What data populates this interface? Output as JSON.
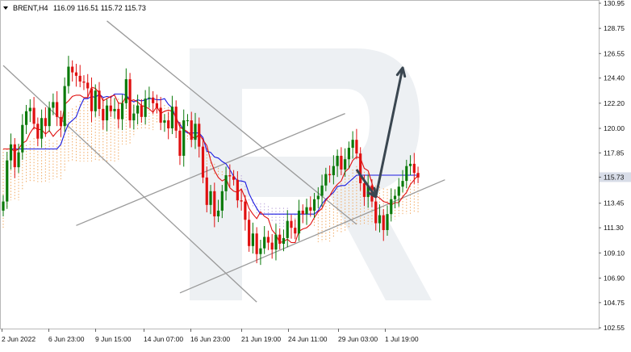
{
  "header": {
    "symbol_label": "BRENT,H4",
    "ohlc": "116.09 116.51 115.72 115.73"
  },
  "colors": {
    "bull": "#0a7a0a",
    "bear": "#e01010",
    "tenkan": "#e01010",
    "kijun": "#1a1ae0",
    "cloud": "#f0a050",
    "cloud_alt": "#b8a0d8",
    "trend": "#9a9a9a",
    "arrow": "#3a4650",
    "price_tag": "#d8dde8"
  },
  "chart_data": {
    "type": "candlestick",
    "title": "BRENT,H4",
    "ohlc_header": [
      116.09,
      116.51,
      115.72,
      115.73
    ],
    "ylim": [
      102.55,
      130.95
    ],
    "y_ticks": [
      "130.95",
      "128.75",
      "126.55",
      "124.40",
      "122.20",
      "120.00",
      "117.85",
      "115.73",
      "113.45",
      "111.30",
      "109.10",
      "106.90",
      "104.75",
      "102.55"
    ],
    "current_price": "115.73",
    "x_ticks": [
      "2 Jun 2022",
      "6 Jun 23:00",
      "9 Jun 15:00",
      "14 Jun 07:00",
      "16 Jun 23:00",
      "21 Jun 19:00",
      "24 Jun 11:00",
      "29 Jun 03:00",
      "1 Jul 19:00"
    ],
    "grid": true,
    "watermark": "R",
    "closes": [
      113.6,
      117.2,
      118.6,
      116.6,
      117.9,
      120.3,
      121.5,
      121.8,
      120.4,
      119.1,
      120.9,
      120.2,
      121.8,
      122.3,
      121.0,
      120.2,
      123.7,
      125.4,
      124.9,
      124.6,
      124.1,
      124.0,
      123.5,
      121.5,
      123.3,
      121.7,
      120.7,
      122.0,
      121.5,
      121.7,
      120.8,
      122.2,
      124.3,
      120.7,
      121.3,
      122.0,
      121.0,
      122.6,
      122.7,
      122.2,
      121.8,
      120.5,
      120.7,
      120.0,
      121.9,
      119.8,
      117.6,
      120.7,
      120.7,
      119.0,
      120.4,
      118.4,
      115.7,
      113.3,
      114.5,
      112.3,
      112.8,
      114.5,
      115.9,
      115.8,
      115.5,
      113.7,
      113.6,
      112.0,
      109.7,
      110.8,
      109.0,
      109.5,
      110.5,
      110.0,
      109.4,
      110.7,
      109.9,
      110.4,
      111.9,
      111.3,
      110.8,
      112.8,
      112.5,
      113.1,
      112.8,
      113.8,
      114.1,
      115.0,
      116.0,
      115.9,
      116.7,
      117.6,
      116.4,
      117.3,
      118.3,
      119.0,
      117.8,
      115.2,
      114.0,
      115.0,
      113.6,
      111.7,
      112.4,
      111.1,
      112.5,
      113.8,
      114.1,
      114.9,
      115.4,
      116.7,
      116.9,
      116.1,
      115.7
    ],
    "tenkan_sen": [
      118.2,
      118.2,
      118.2,
      118.0,
      118.2,
      118.7,
      118.9,
      119.6,
      120.1,
      119.9,
      119.9,
      119.5,
      119.8,
      119.3,
      119.7,
      120.0,
      122.1,
      122.4,
      122.8,
      122.9,
      122.9,
      122.7,
      122.7,
      123.6,
      123.5,
      123.1,
      122.4,
      122.6,
      122.8,
      122.9,
      122.2,
      122.2,
      122.8,
      122.4,
      122.5,
      122.3,
      122.0,
      121.9,
      121.7,
      121.4,
      121.9,
      121.3,
      121.5,
      121.6,
      121.5,
      121.0,
      120.1,
      119.9,
      119.7,
      119.3,
      119.1,
      119.5,
      119.0,
      118.5,
      117.2,
      116.3,
      115.7,
      115.4,
      115.6,
      114.8,
      114.5,
      114.4,
      114.7,
      113.9,
      113.0,
      112.5,
      112.1,
      112.7,
      112.3,
      112.1,
      111.1,
      110.7,
      110.0,
      110.1,
      110.3,
      110.0,
      110.0,
      111.0,
      111.2,
      111.3,
      111.6,
      112.2,
      112.7,
      113.0,
      113.7,
      114.1,
      114.7,
      115.1,
      115.4,
      116.2,
      116.5,
      117.2,
      117.5,
      117.4,
      116.5,
      116.3,
      115.2,
      114.1,
      113.9,
      113.6,
      113.5,
      113.3,
      113.5,
      113.5,
      114.0,
      114.4,
      115.1,
      115.5,
      115.9
    ],
    "kijun_sen": [
      118.2,
      118.2,
      118.2,
      118.2,
      118.2,
      118.2,
      118.2,
      118.2,
      118.2,
      118.2,
      118.2,
      118.2,
      118.2,
      118.2,
      118.2,
      118.6,
      119.6,
      120.4,
      120.7,
      121.0,
      121.9,
      122.6,
      122.6,
      122.8,
      122.7,
      123.0,
      122.7,
      122.8,
      122.7,
      123.0,
      123.0,
      123.0,
      122.9,
      122.5,
      122.3,
      122.5,
      122.4,
      122.5,
      122.6,
      122.6,
      122.5,
      122.5,
      122.6,
      122.1,
      121.8,
      120.8,
      120.4,
      119.8,
      119.6,
      119.6,
      119.6,
      119.6,
      119.2,
      118.0,
      117.9,
      117.5,
      117.4,
      117.1,
      116.9,
      116.4,
      115.8,
      115.4,
      115.4,
      115.3,
      114.3,
      113.6,
      113.0,
      112.5,
      112.5,
      112.5,
      112.5,
      112.5,
      112.5,
      112.5,
      112.5,
      112.5,
      112.5,
      112.5,
      112.5,
      112.5,
      112.5,
      112.5,
      112.8,
      113.4,
      113.8,
      114.1,
      114.4,
      114.9,
      115.0,
      115.0,
      115.3,
      115.6,
      115.9,
      115.9,
      115.9,
      115.9,
      115.9,
      115.9,
      115.9,
      115.9,
      115.9,
      115.9,
      115.9,
      115.9,
      115.9,
      115.9,
      115.9,
      115.9,
      115.9
    ],
    "trend_lines": [
      {
        "name": "",
        "from": [
          0,
          125.5
        ],
        "to": [
          66,
          104.8
        ]
      },
      {
        "name": "",
        "from": [
          27,
          129.4
        ],
        "to": [
          92,
          111.6
        ]
      },
      {
        "name": "",
        "from": [
          19,
          111.5
        ],
        "to": [
          89,
          121.3
        ]
      },
      {
        "name": "",
        "from": [
          46,
          105.6
        ],
        "to": [
          115,
          115.5
        ]
      }
    ],
    "forecast_arrows": [
      {
        "from": [
          92,
          116.4
        ],
        "to": [
          97,
          114.0
        ]
      },
      {
        "from": [
          97,
          114.0
        ],
        "to": [
          104,
          125.3
        ]
      }
    ]
  }
}
